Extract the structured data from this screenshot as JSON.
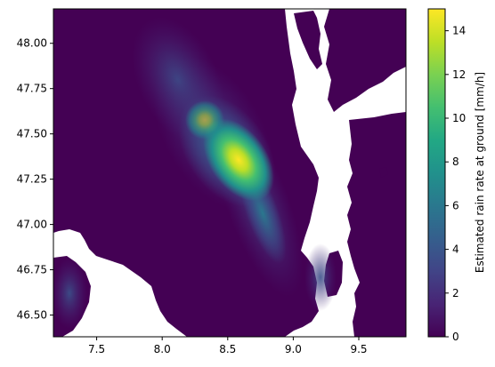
{
  "chart_data": {
    "type": "heatmap",
    "title": "",
    "xlabel": "",
    "ylabel": "",
    "xlim": [
      7.17,
      9.86
    ],
    "ylim": [
      46.38,
      48.19
    ],
    "x_ticks": [
      7.5,
      8.0,
      8.5,
      9.0,
      9.5
    ],
    "x_tick_labels": [
      "7.5",
      "8.0",
      "8.5",
      "9.0",
      "9.5"
    ],
    "y_ticks": [
      46.5,
      46.75,
      47.0,
      47.25,
      47.5,
      47.75,
      48.0
    ],
    "y_tick_labels": [
      "46.50",
      "46.75",
      "47.00",
      "47.25",
      "47.50",
      "47.75",
      "48.00"
    ],
    "colormap": "viridis",
    "colorbar": {
      "label": "Estimated rain rate at ground [mm/h]",
      "range": [
        0,
        15
      ],
      "ticks": [
        0,
        2,
        4,
        6,
        8,
        10,
        12,
        14
      ],
      "tick_labels": [
        "0",
        "2",
        "4",
        "6",
        "8",
        "10",
        "12",
        "14"
      ]
    },
    "no_data_color": "#ffffff",
    "rain_features": [
      {
        "lon": 8.63,
        "lat": 47.35,
        "peak_mm_h": 15,
        "description": "main rain core"
      },
      {
        "lon": 8.45,
        "lat": 47.48,
        "peak_mm_h": 7
      },
      {
        "lon": 8.75,
        "lat": 47.1,
        "peak_mm_h": 4
      },
      {
        "lon": 8.85,
        "lat": 46.85,
        "peak_mm_h": 3
      },
      {
        "lon": 7.9,
        "lat": 47.95,
        "peak_mm_h": 2
      },
      {
        "lon": 7.25,
        "lat": 46.62,
        "peak_mm_h": 2
      },
      {
        "lon": 9.25,
        "lat": 46.75,
        "peak_mm_h": 1.5
      }
    ]
  }
}
